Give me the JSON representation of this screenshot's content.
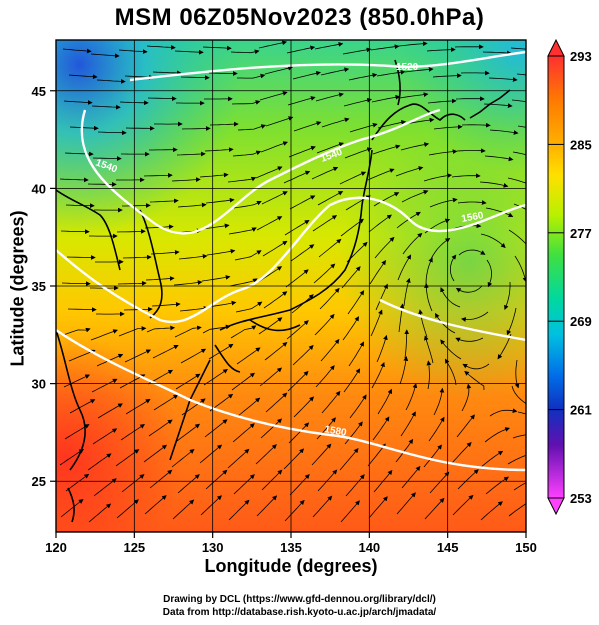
{
  "title": "MSM 06Z05Nov2023 (850.0hPa)",
  "x_axis": {
    "label": "Longitude (degrees)",
    "ticks": [
      "120",
      "125",
      "130",
      "135",
      "140",
      "145",
      "150"
    ]
  },
  "y_axis": {
    "label": "Latitude  (degrees)",
    "ticks": [
      "25",
      "30",
      "35",
      "40",
      "45"
    ]
  },
  "colorbar": {
    "ticks": [
      "293",
      "285",
      "277",
      "269",
      "261",
      "253"
    ],
    "colors": [
      "#ff3333",
      "#ff6a00",
      "#ffa000",
      "#ffd000",
      "#c8f000",
      "#40e040",
      "#00d8a0",
      "#00b8e8",
      "#0050e8",
      "#2010a0",
      "#a000c0",
      "#ff40ff"
    ]
  },
  "contour_labels": [
    "1520",
    "1540",
    "1540",
    "1560",
    "1580"
  ],
  "footer": {
    "line1": "Drawing by DCL (https://www.gfd-dennou.org/library/dcl/)",
    "line2": "Data from http://database.rish.kyoto-u.ac.jp/arch/jmadata/"
  },
  "map_colors": {
    "warm": "#ff5a1a",
    "mid": "#e8e800",
    "cool": "#1ec8c8"
  }
}
